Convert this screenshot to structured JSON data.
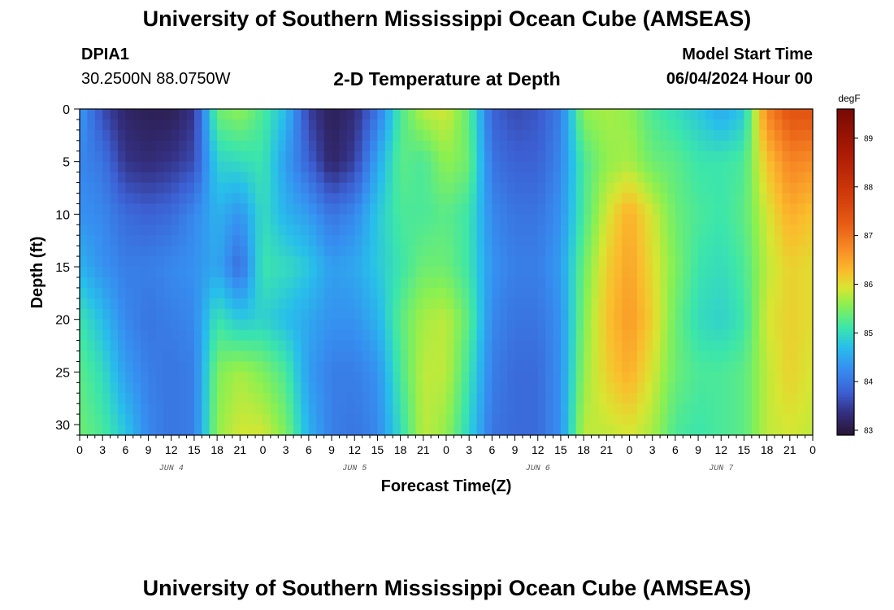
{
  "header": {
    "title": "University of Southern Mississippi Ocean Cube (AMSEAS)",
    "station_id": "DPIA1",
    "coordinates": "30.2500N  88.0750W",
    "model_start_label": "Model Start Time",
    "model_start_value": "06/04/2024 Hour 00"
  },
  "footer": {
    "title": "University of Southern Mississippi Ocean Cube (AMSEAS)"
  },
  "chart_data": {
    "type": "heatmap",
    "title": "2-D Temperature at Depth",
    "xlabel": "Forecast Time(Z)",
    "ylabel": "Depth (ft)",
    "x_range_hours": [
      0,
      96
    ],
    "x_tick_hours": [
      0,
      3,
      6,
      9,
      12,
      15,
      18,
      21,
      24,
      27,
      30,
      33,
      36,
      39,
      42,
      45,
      48,
      51,
      54,
      57,
      60,
      63,
      66,
      69,
      72,
      75,
      78,
      81,
      84,
      87,
      90,
      93,
      96
    ],
    "x_tick_labels": [
      "0",
      "3",
      "6",
      "9",
      "12",
      "15",
      "18",
      "21",
      "0",
      "3",
      "6",
      "9",
      "12",
      "15",
      "18",
      "21",
      "0",
      "3",
      "6",
      "9",
      "12",
      "15",
      "18",
      "21",
      "0",
      "3",
      "6",
      "9",
      "12",
      "15",
      "18",
      "21",
      "0"
    ],
    "day_labels": [
      {
        "label": "JUN 4",
        "hour": 12
      },
      {
        "label": "JUN 5",
        "hour": 36
      },
      {
        "label": "JUN 6",
        "hour": 60
      },
      {
        "label": "JUN 7",
        "hour": 84
      }
    ],
    "y_range_ft": [
      0,
      31
    ],
    "y_ticks": [
      0,
      5,
      10,
      15,
      20,
      25,
      30
    ],
    "colorbar": {
      "units": "degF",
      "min": 82.9,
      "max": 89.6,
      "ticks": [
        83,
        84,
        85,
        86,
        87,
        88,
        89
      ]
    },
    "approx_temperature_grid_degF": {
      "hours": [
        0,
        3,
        6,
        9,
        12,
        15,
        18,
        21,
        24,
        27,
        30,
        33,
        36,
        39,
        42,
        45,
        48,
        51,
        54,
        57,
        60,
        63,
        66,
        69,
        72,
        75,
        78,
        81,
        84,
        87,
        90,
        93,
        96
      ],
      "depths_ft": [
        0,
        5,
        10,
        15,
        20,
        25,
        31
      ],
      "values": [
        [
          84.4,
          84.2,
          84.3,
          84.6,
          85.1,
          85.3,
          85.4
        ],
        [
          83.6,
          84.0,
          84.2,
          84.3,
          84.7,
          85.0,
          85.2
        ],
        [
          83.2,
          83.4,
          83.9,
          84.1,
          84.2,
          84.4,
          84.8
        ],
        [
          83.1,
          83.3,
          83.8,
          84.1,
          84.0,
          84.1,
          84.2
        ],
        [
          83.1,
          83.4,
          83.9,
          84.2,
          84.1,
          84.0,
          84.0
        ],
        [
          83.4,
          83.6,
          84.2,
          84.3,
          84.2,
          84.1,
          84.1
        ],
        [
          85.4,
          84.9,
          84.6,
          84.5,
          85.1,
          85.5,
          85.6
        ],
        [
          85.6,
          85.0,
          84.3,
          83.9,
          84.8,
          85.7,
          85.9
        ],
        [
          85.2,
          85.1,
          85.0,
          85.1,
          84.9,
          85.5,
          85.9
        ],
        [
          84.7,
          84.4,
          84.6,
          85.0,
          84.7,
          85.2,
          85.5
        ],
        [
          83.5,
          83.8,
          84.4,
          84.8,
          84.5,
          84.4,
          84.6
        ],
        [
          83.1,
          83.2,
          84.0,
          84.4,
          84.3,
          84.1,
          84.1
        ],
        [
          83.3,
          83.5,
          84.2,
          84.5,
          84.3,
          84.1,
          84.0
        ],
        [
          84.0,
          84.5,
          84.8,
          84.8,
          84.6,
          84.3,
          84.2
        ],
        [
          85.2,
          85.3,
          85.2,
          85.1,
          85.3,
          85.2,
          85.0
        ],
        [
          85.8,
          85.2,
          85.2,
          85.4,
          85.7,
          85.8,
          85.8
        ],
        [
          85.9,
          85.6,
          85.3,
          85.4,
          85.8,
          85.8,
          85.6
        ],
        [
          85.3,
          85.4,
          85.1,
          85.1,
          85.3,
          85.1,
          84.9
        ],
        [
          83.8,
          84.0,
          84.2,
          84.3,
          84.2,
          84.1,
          84.0
        ],
        [
          83.6,
          83.8,
          84.0,
          84.1,
          84.0,
          83.9,
          83.9
        ],
        [
          83.7,
          83.8,
          84.0,
          84.1,
          84.0,
          83.9,
          83.9
        ],
        [
          84.1,
          84.2,
          84.3,
          84.4,
          84.3,
          84.3,
          84.3
        ],
        [
          85.6,
          85.2,
          85.2,
          85.4,
          85.5,
          85.6,
          85.8
        ],
        [
          85.7,
          85.6,
          85.9,
          86.1,
          86.2,
          86.1,
          85.8
        ],
        [
          85.6,
          85.7,
          86.4,
          86.5,
          86.6,
          86.4,
          85.9
        ],
        [
          85.2,
          85.4,
          85.9,
          86.0,
          86.1,
          85.9,
          85.7
        ],
        [
          85.0,
          85.3,
          85.4,
          85.5,
          85.4,
          85.4,
          85.2
        ],
        [
          84.8,
          85.1,
          85.2,
          85.1,
          85.0,
          85.2,
          85.1
        ],
        [
          84.5,
          85.1,
          85.1,
          85.0,
          84.9,
          85.2,
          85.2
        ],
        [
          84.8,
          85.2,
          85.3,
          85.2,
          85.1,
          85.3,
          85.3
        ],
        [
          86.8,
          86.2,
          85.9,
          85.8,
          85.9,
          85.8,
          85.8
        ],
        [
          87.4,
          86.8,
          86.4,
          86.1,
          86.1,
          86.1,
          85.9
        ],
        [
          87.4,
          86.7,
          86.2,
          86.0,
          86.0,
          85.9,
          85.8
        ]
      ]
    }
  }
}
